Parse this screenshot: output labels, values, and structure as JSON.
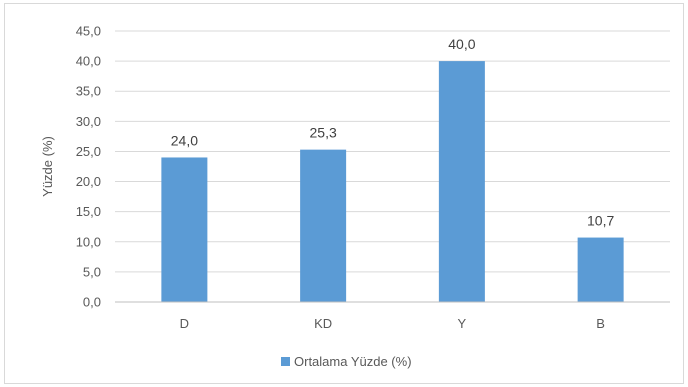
{
  "chart_data": {
    "type": "bar",
    "categories": [
      "D",
      "KD",
      "Y",
      "B"
    ],
    "series": [
      {
        "name": "Ortalama Yüzde (%)",
        "values": [
          24.0,
          25.3,
          40.0,
          10.7
        ],
        "color": "#5b9bd5"
      }
    ],
    "data_labels": [
      "24,0",
      "25,3",
      "40,0",
      "10,7"
    ],
    "ylabel": "Yüzde (%)",
    "xlabel": "",
    "ylim": [
      0,
      45
    ],
    "y_ticks": [
      "0,0",
      "5,0",
      "10,0",
      "15,0",
      "20,0",
      "25,0",
      "30,0",
      "35,0",
      "40,0",
      "45,0"
    ],
    "grid": true,
    "legend_position": "bottom"
  }
}
